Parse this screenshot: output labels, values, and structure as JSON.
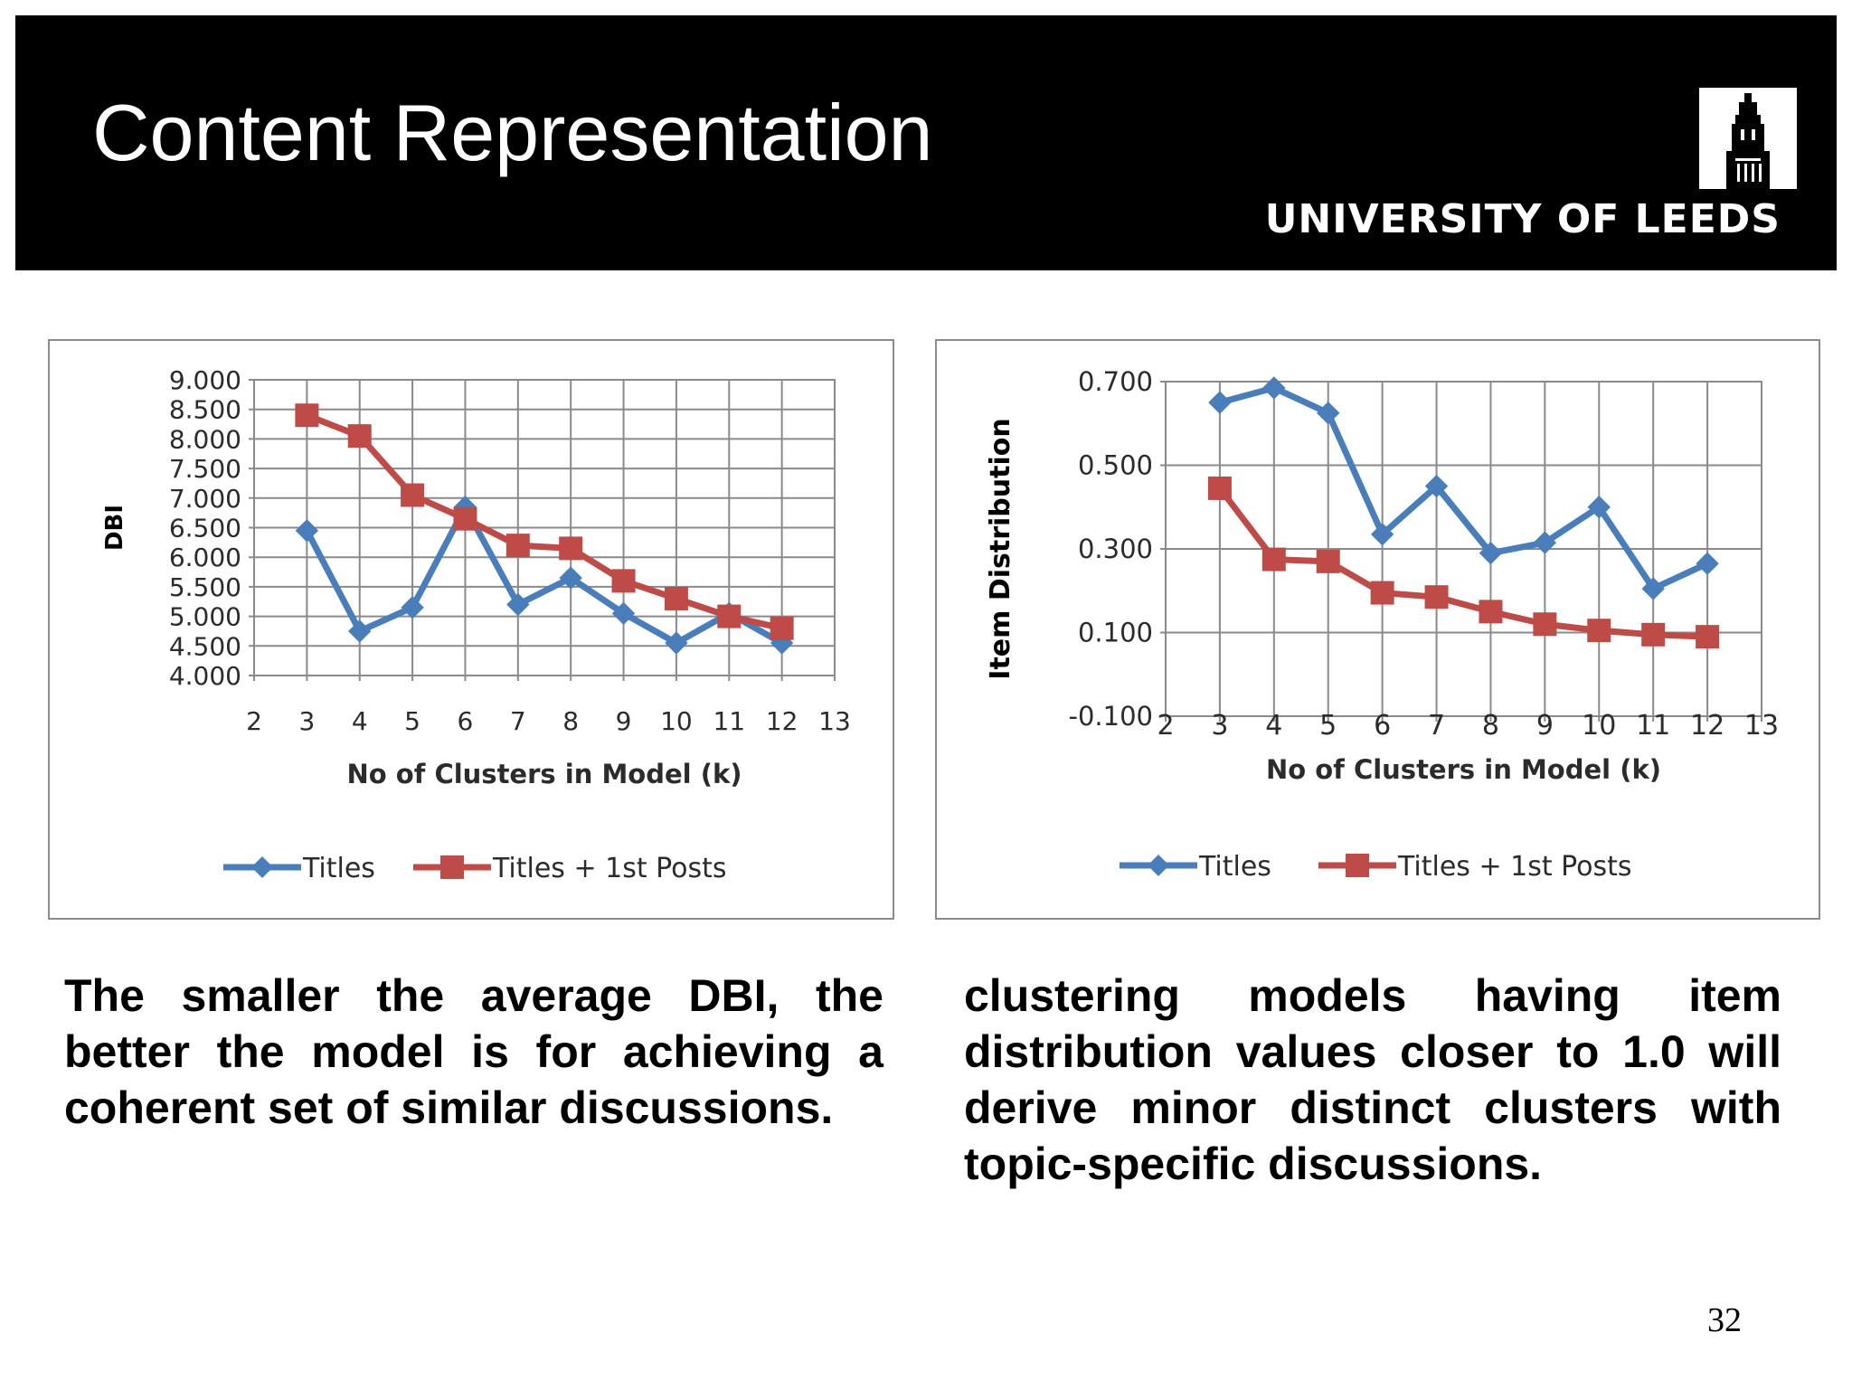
{
  "header": {
    "title": "Content Representation",
    "logo_text": "UNIVERSITY OF LEEDS",
    "background": "#000000"
  },
  "chart_data": [
    {
      "type": "line",
      "title": "",
      "xlabel": "No of Clusters in Model (k)",
      "ylabel": "DBI",
      "xlim": [
        2,
        13
      ],
      "ylim": [
        4.0,
        9.0
      ],
      "x_ticks": [
        "2",
        "3",
        "4",
        "5",
        "6",
        "7",
        "8",
        "9",
        "10",
        "11",
        "12",
        "13"
      ],
      "y_ticks": [
        "9.000",
        "8.500",
        "8.000",
        "7.500",
        "7.000",
        "6.500",
        "6.000",
        "5.500",
        "5.000",
        "4.500",
        "4.000"
      ],
      "grid": true,
      "legend_position": "bottom",
      "x": [
        3,
        4,
        5,
        6,
        7,
        8,
        9,
        10,
        11,
        12
      ],
      "series": [
        {
          "name": "Titles",
          "marker": "diamond",
          "color": "#4a7ebb",
          "values": [
            6.45,
            4.75,
            5.15,
            6.85,
            5.2,
            5.65,
            5.05,
            4.55,
            5.05,
            4.55
          ]
        },
        {
          "name": "Titles + 1st Posts",
          "marker": "square",
          "color": "#be4b48",
          "values": [
            8.4,
            8.05,
            7.05,
            6.65,
            6.2,
            6.15,
            5.6,
            5.3,
            5.0,
            4.8
          ]
        }
      ]
    },
    {
      "type": "line",
      "title": "",
      "xlabel": "No of Clusters in Model (k)",
      "ylabel": "Item Distribution",
      "xlim": [
        2,
        13
      ],
      "ylim": [
        -0.1,
        0.7
      ],
      "x_ticks": [
        "2",
        "3",
        "4",
        "5",
        "6",
        "7",
        "8",
        "9",
        "10",
        "11",
        "12",
        "13"
      ],
      "y_ticks": [
        "0.700",
        "0.500",
        "0.300",
        "0.100",
        "-0.100"
      ],
      "grid": true,
      "legend_position": "bottom",
      "x": [
        3,
        4,
        5,
        6,
        7,
        8,
        9,
        10,
        11,
        12
      ],
      "series": [
        {
          "name": "Titles",
          "marker": "diamond",
          "color": "#4a7ebb",
          "values": [
            0.65,
            0.685,
            0.625,
            0.335,
            0.45,
            0.29,
            0.315,
            0.4,
            0.205,
            0.265
          ]
        },
        {
          "name": "Titles + 1st Posts",
          "marker": "square",
          "color": "#be4b48",
          "values": [
            0.445,
            0.275,
            0.27,
            0.195,
            0.185,
            0.15,
            0.12,
            0.105,
            0.095,
            0.09
          ]
        }
      ]
    }
  ],
  "captions": {
    "left": "The smaller the average DBI, the better the model is for achieving a coherent set of similar discussions.",
    "right": "clustering models having item distribution values closer to 1.0 will derive minor distinct clusters with topic-specific discussions."
  },
  "page_number": "32"
}
